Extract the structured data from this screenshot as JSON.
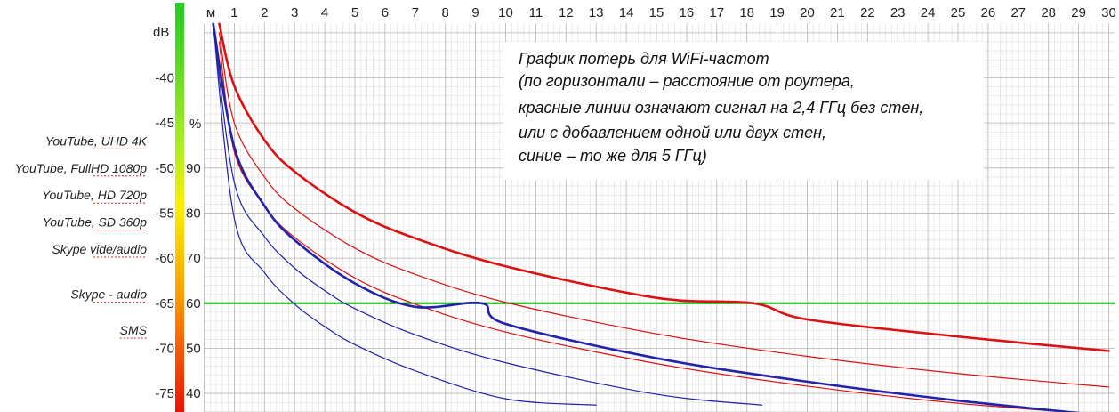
{
  "chart_data": {
    "type": "line",
    "title_lines": [
      "График  потерь для WiFi-частот",
      "(по горизонтали – расстояние от роутера,",
      "красные линии означают сигнал на 2,4 ГГц без стен,",
      "или с добавлением одной или двух стен,",
      "синие – то же для 5 ГГц)"
    ],
    "x_axis": {
      "unit_label": "м",
      "range": [
        0,
        30
      ],
      "ticks": [
        1,
        2,
        3,
        4,
        5,
        6,
        7,
        8,
        9,
        10,
        11,
        12,
        13,
        14,
        15,
        16,
        17,
        18,
        19,
        20,
        21,
        22,
        23,
        24,
        25,
        26,
        27,
        28,
        29,
        30
      ]
    },
    "y_axis": {
      "unit_label": "dB",
      "range": [
        -77,
        -34
      ],
      "ticks": [
        -40,
        -45,
        -50,
        -55,
        -60,
        -65,
        -70,
        -75
      ]
    },
    "percent_axis": {
      "unit_label": "%",
      "ticks": [
        90,
        80,
        70,
        60,
        50,
        40
      ]
    },
    "threshold": {
      "db": -65,
      "color": "#22bb22"
    },
    "service_labels": [
      {
        "text": "YouTube, UHD 4K",
        "db": -47
      },
      {
        "text": "YouTube, FullHD 1080p",
        "db": -50
      },
      {
        "text": "YouTube, HD 720p",
        "db": -53
      },
      {
        "text": "YouTube, SD 360p",
        "db": -56
      },
      {
        "text": "Skype vide/audio",
        "db": -59
      },
      {
        "text": "Skype - audio",
        "db": -64
      },
      {
        "text": "SMS",
        "db": -68
      }
    ],
    "series": [
      {
        "color": "#dd1111",
        "width": 2.6,
        "x": [
          0.5,
          1,
          2,
          3,
          5,
          7,
          10,
          15,
          18.2,
          20,
          25,
          30
        ],
        "y": [
          -34,
          -40.9,
          -46.9,
          -50.4,
          -54.9,
          -57.8,
          -60.9,
          -64.4,
          -65,
          -66.8,
          -68.7,
          -70.3
        ]
      },
      {
        "color": "#dd1111",
        "width": 1.2,
        "x": [
          0.5,
          1,
          2,
          3,
          5,
          7,
          10,
          15,
          20,
          25,
          30
        ],
        "y": [
          -35,
          -45.0,
          -51.0,
          -54.5,
          -58.9,
          -61.8,
          -64.9,
          -68.4,
          -70.9,
          -72.8,
          -74.3
        ]
      },
      {
        "color": "#dd1111",
        "width": 1.2,
        "x": [
          0.5,
          1,
          2,
          3,
          5,
          7,
          10,
          15,
          20,
          25,
          30
        ],
        "y": [
          -36,
          -48.2,
          -54.2,
          -57.7,
          -62.2,
          -65.1,
          -68.2,
          -71.7,
          -74.2,
          -76.1,
          -77.4
        ]
      },
      {
        "color": "#2222aa",
        "width": 2.6,
        "x": [
          0.3,
          1,
          2,
          3,
          5,
          7,
          9.2,
          10,
          15,
          20,
          25,
          30
        ],
        "y": [
          -34,
          -47.7,
          -54.2,
          -58.0,
          -62.8,
          -65.4,
          -65,
          -67.3,
          -71.1,
          -73.7,
          -75.8,
          -77.5
        ]
      },
      {
        "color": "#2222aa",
        "width": 1.2,
        "x": [
          0.3,
          1,
          2,
          3,
          4,
          5,
          7,
          10,
          15,
          18.5
        ],
        "y": [
          -34,
          -51.6,
          -57.6,
          -61.1,
          -63.6,
          -65.6,
          -68.5,
          -71.6,
          -75.1,
          -76.3
        ]
      },
      {
        "color": "#2222aa",
        "width": 1.2,
        "x": [
          0.3,
          1,
          2,
          3,
          4,
          5,
          7,
          10,
          13
        ],
        "y": [
          -34,
          -55.6,
          -61.6,
          -65.1,
          -67.6,
          -69.6,
          -72.5,
          -75.6,
          -76.3
        ]
      }
    ]
  }
}
